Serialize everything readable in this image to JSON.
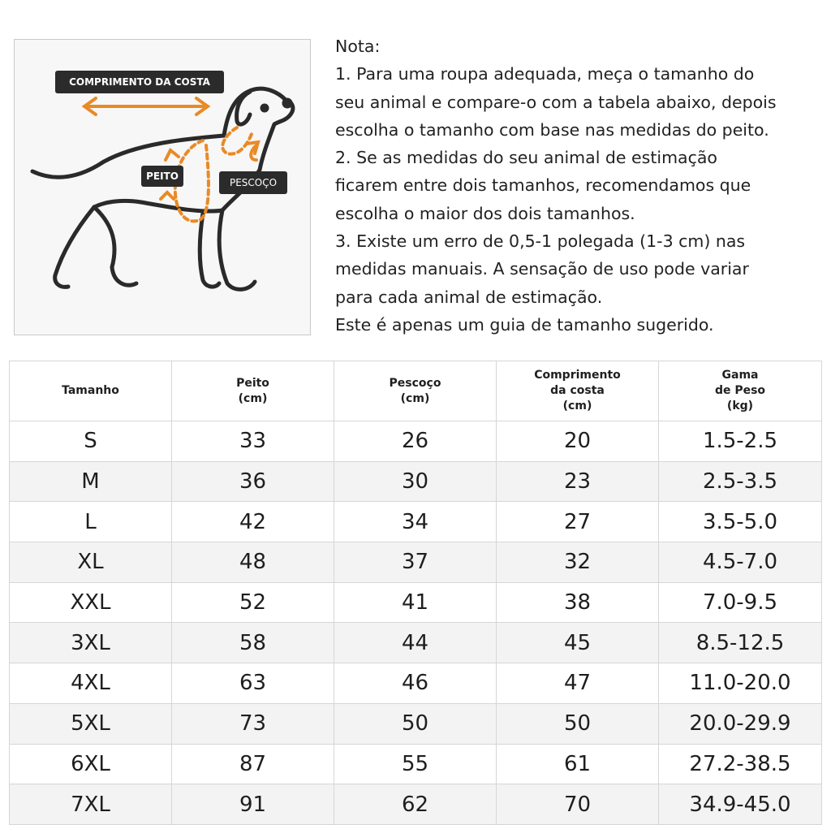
{
  "diagram": {
    "labels": {
      "back_length": "COMPRIMENTO DA COSTA",
      "chest": "PEITO",
      "neck": "PESCOÇO"
    },
    "colors": {
      "arrow": "#e98a25",
      "outline": "#2a2a2a",
      "tag": "#2b2b2b"
    },
    "icons": [
      "dog-outline-icon",
      "double-arrow-icon",
      "measure-loop-icon"
    ]
  },
  "notes": {
    "lines": [
      "Nota:",
      "1. Para uma roupa adequada, meça o tamanho do",
      "seu animal e compare-o com a tabela abaixo, depois",
      "escolha o tamanho com base nas medidas do peito.",
      "2. Se as medidas do seu animal de estimação",
      "ficarem entre dois tamanhos, recomendamos que",
      "escolha o maior dos dois tamanhos.",
      "3. Existe um erro de 0,5-1 polegada (1-3 cm) nas",
      "medidas manuais. A sensação de uso pode variar",
      "para cada animal de estimação.",
      "Este é apenas um guia de tamanho sugerido."
    ]
  },
  "table": {
    "headers": [
      [
        "Tamanho"
      ],
      [
        "Peito",
        "(cm)"
      ],
      [
        "Pescoço",
        "(cm)"
      ],
      [
        "Comprimento",
        "da costa",
        "(cm)"
      ],
      [
        "Gama",
        "de Peso",
        "(kg)"
      ]
    ],
    "rows": [
      [
        "S",
        "33",
        "26",
        "20",
        "1.5-2.5"
      ],
      [
        "M",
        "36",
        "30",
        "23",
        "2.5-3.5"
      ],
      [
        "L",
        "42",
        "34",
        "27",
        "3.5-5.0"
      ],
      [
        "XL",
        "48",
        "37",
        "32",
        "4.5-7.0"
      ],
      [
        "XXL",
        "52",
        "41",
        "38",
        "7.0-9.5"
      ],
      [
        "3XL",
        "58",
        "44",
        "45",
        "8.5-12.5"
      ],
      [
        "4XL",
        "63",
        "46",
        "47",
        "11.0-20.0"
      ],
      [
        "5XL",
        "73",
        "50",
        "50",
        "20.0-29.9"
      ],
      [
        "6XL",
        "87",
        "55",
        "61",
        "27.2-38.5"
      ],
      [
        "7XL",
        "91",
        "62",
        "70",
        "34.9-45.0"
      ]
    ]
  }
}
